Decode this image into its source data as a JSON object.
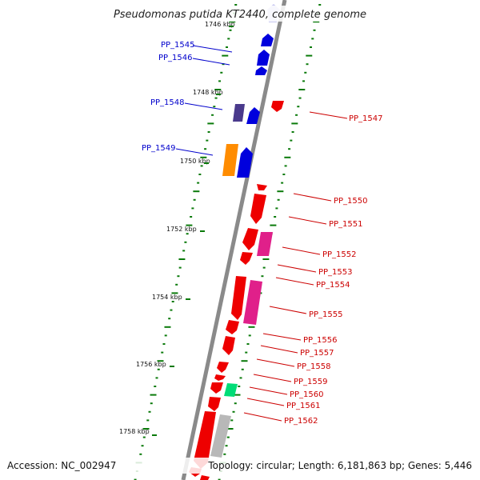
{
  "title": "Pseudomonas putida KT2440, complete genome",
  "footer": {
    "accession": "Accession: NC_002947",
    "topology": "Topology: circular; Length: 6,181,863 bp; Genes: 5,446"
  },
  "colors": {
    "backbone": "#8a8a8a",
    "tick": "#0a7a0a",
    "left_label": "#0000cc",
    "right_label": "#cc0000"
  },
  "scale_labels": [
    "1746 kbp",
    "1748 kbp",
    "1750 kbp",
    "1752 kbp",
    "1754 kbp",
    "1756 kbp",
    "1758 kbp"
  ],
  "left_genes": [
    "PP_1545",
    "PP_1546",
    "PP_1548",
    "PP_1549"
  ],
  "right_genes": [
    "PP_1547",
    "PP_1550",
    "PP_1551",
    "PP_1552",
    "PP_1553",
    "PP_1554",
    "PP_1555",
    "PP_1556",
    "PP_1557",
    "PP_1558",
    "PP_1559",
    "PP_1560",
    "PP_1561",
    "PP_1562"
  ]
}
